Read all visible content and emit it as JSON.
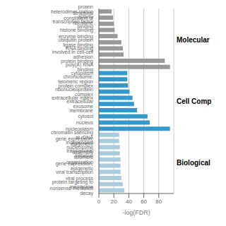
{
  "chart_data": {
    "type": "bar",
    "orientation": "horizontal",
    "categories": [
      "protein heterodimer-ization activity",
      "structural constituent of ribosome",
      "transcription factor binding",
      "histone binding",
      "enzyme binding",
      "ubiquitin protein ligase binding",
      "RNA binding",
      "involved in cell-cell adhesion",
      "protein binding",
      "poly(A) RNA binding",
      "cytoplasm",
      "chromosome, telomeric region",
      "protein complex",
      "ribonucleoprotein complex",
      "extracellular matrix",
      "extracellular exosome",
      "membrane",
      "cytosol",
      "nucleus",
      "nucleoplasm",
      "chromatin silencing at rDNA",
      "gene expression, epigenetic",
      "independent nucleosome assembly",
      "translational initiation",
      "telomere organization",
      "gene expression, epigenetic",
      "viral transcription",
      "viral process",
      "protein targeting to membrane",
      "nonsense-mediated decay"
    ],
    "values": [
      17,
      19,
      20,
      21,
      25,
      30,
      32,
      33,
      88,
      95,
      38,
      38,
      39,
      41,
      45,
      47,
      51,
      65,
      68,
      95,
      27,
      27,
      28,
      28,
      29,
      29,
      29,
      30,
      32,
      34
    ],
    "colors": [
      "#999999",
      "#999999",
      "#999999",
      "#999999",
      "#999999",
      "#999999",
      "#999999",
      "#999999",
      "#999999",
      "#999999",
      "#3399cc",
      "#3399cc",
      "#3399cc",
      "#3399cc",
      "#3399cc",
      "#3399cc",
      "#3399cc",
      "#3399cc",
      "#3399cc",
      "#3399cc",
      "#aaccdd",
      "#aaccdd",
      "#aaccdd",
      "#aaccdd",
      "#aaccdd",
      "#aaccdd",
      "#aaccdd",
      "#aaccdd",
      "#aaccdd",
      "#aaccdd"
    ],
    "xlabel": "-log(FDR)",
    "xlim": [
      0,
      100
    ],
    "xticks": [
      0,
      20,
      40,
      60,
      80
    ],
    "grid": true,
    "annotations": [
      "Molecular",
      "Cell Comp",
      "Biological"
    ]
  }
}
